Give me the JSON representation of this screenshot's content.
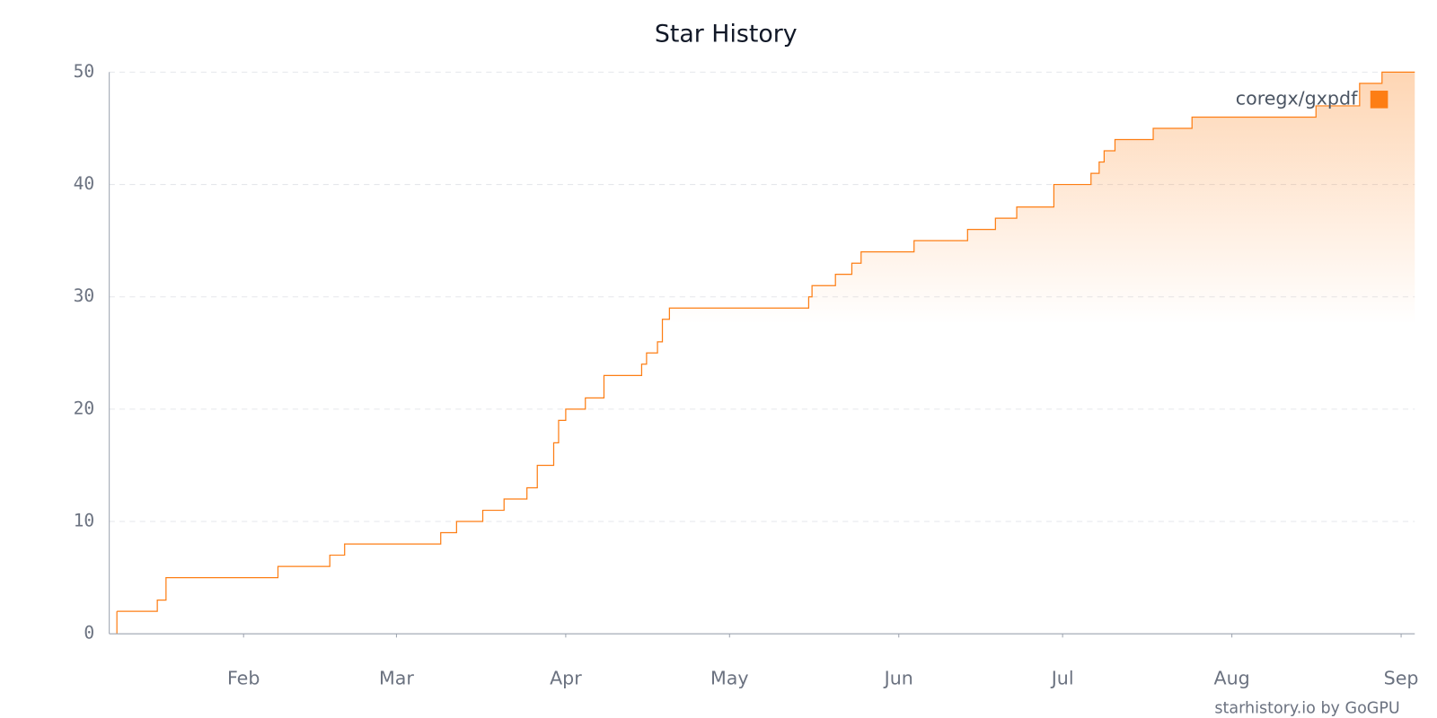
{
  "chart_data": {
    "type": "line",
    "title": "Star History",
    "footer": "starhistory.io by GoGPU",
    "x": [
      8.8,
      16.2,
      17.8,
      38.3,
      47.8,
      50.5,
      68.1,
      71.0,
      75.8,
      79.7,
      83.9,
      85.8,
      88.8,
      89.7,
      91.0,
      94.6,
      98.0,
      104.9,
      105.8,
      107.8,
      108.7,
      110.0,
      135.5,
      136.1,
      140.4,
      143.4,
      145.1,
      154.8,
      164.6,
      169.7,
      173.6,
      180.4,
      187.2,
      188.7,
      189.6,
      191.6,
      198.6,
      205.7,
      228.4,
      236.4,
      240.5
    ],
    "series": [
      {
        "name": "coregx/gxpdf",
        "color": "#fd7e14",
        "values": [
          2,
          3,
          5,
          6,
          7,
          8,
          9,
          10,
          11,
          12,
          13,
          15,
          17,
          19,
          20,
          21,
          23,
          24,
          25,
          26,
          28,
          29,
          30,
          31,
          32,
          33,
          34,
          35,
          36,
          37,
          38,
          40,
          41,
          42,
          43,
          44,
          45,
          46,
          47,
          49,
          50
        ]
      }
    ],
    "xlim": [
      7.4,
      246.5
    ],
    "xticks": [
      {
        "value": 32,
        "label": "Feb"
      },
      {
        "value": 60,
        "label": "Mar"
      },
      {
        "value": 91,
        "label": "Apr"
      },
      {
        "value": 121,
        "label": "May"
      },
      {
        "value": 152,
        "label": "Jun"
      },
      {
        "value": 182,
        "label": "Jul"
      },
      {
        "value": 213,
        "label": "Aug"
      },
      {
        "value": 244,
        "label": "Sep"
      }
    ],
    "ylim": [
      0,
      50
    ],
    "yticks": [
      0,
      10,
      20,
      30,
      40,
      50
    ],
    "grid": true,
    "step": true,
    "legend": "top-right"
  }
}
